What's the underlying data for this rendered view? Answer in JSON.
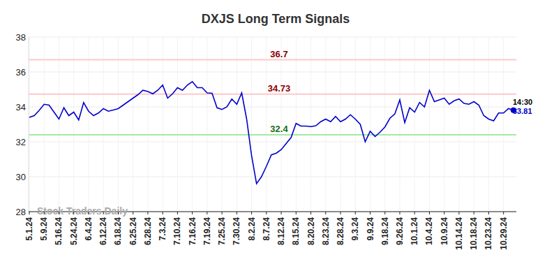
{
  "chart_data": {
    "type": "line",
    "title": "DXJS Long Term Signals",
    "categories": [
      "5.1.24",
      null,
      null,
      "5.9.24",
      null,
      null,
      "5.16.24",
      null,
      null,
      "5.24.24",
      null,
      null,
      "6.4.24",
      null,
      null,
      "6.12.24",
      null,
      null,
      "6.18.24",
      null,
      null,
      "6.25.24",
      null,
      null,
      "6.28.24",
      null,
      null,
      "7.3.24",
      null,
      null,
      "7.10.24",
      null,
      null,
      "7.16.24",
      null,
      null,
      "7.19.24",
      null,
      null,
      "7.25.24",
      null,
      null,
      "7.30.24",
      null,
      null,
      "8.2.24",
      null,
      null,
      "8.7.24",
      null,
      null,
      "8.12.24",
      null,
      null,
      "8.15.24",
      null,
      null,
      "8.20.24",
      null,
      null,
      "8.23.24",
      null,
      null,
      "8.28.24",
      null,
      null,
      "9.3.24",
      null,
      null,
      "9.9.24",
      null,
      null,
      "9.18.24",
      null,
      null,
      "9.26.24",
      null,
      null,
      "10.1.24",
      null,
      null,
      "10.4.24",
      null,
      null,
      "10.9.24",
      null,
      null,
      "10.14.24",
      null,
      null,
      "10.18.24",
      null,
      null,
      "10.23.24",
      null,
      null,
      "10.29.24",
      null,
      null
    ],
    "values": [
      33.4,
      33.5,
      33.8,
      34.15,
      34.1,
      33.7,
      33.3,
      33.95,
      33.5,
      33.7,
      33.25,
      34.25,
      33.75,
      33.5,
      33.65,
      33.9,
      33.75,
      33.82,
      33.9,
      34.1,
      34.3,
      34.5,
      34.7,
      34.95,
      34.88,
      34.75,
      34.95,
      35.25,
      34.5,
      34.75,
      35.1,
      34.95,
      35.25,
      35.45,
      35.1,
      35.1,
      34.8,
      34.78,
      33.95,
      33.85,
      34.0,
      34.45,
      34.15,
      34.8,
      33.3,
      31.2,
      29.6,
      30.0,
      30.6,
      31.25,
      31.35,
      31.55,
      31.9,
      32.25,
      33.05,
      32.9,
      32.9,
      32.87,
      32.92,
      33.15,
      33.3,
      33.15,
      33.45,
      33.15,
      33.3,
      33.55,
      33.3,
      33.0,
      32.0,
      32.6,
      32.3,
      32.55,
      32.85,
      33.35,
      33.6,
      34.4,
      33.1,
      33.95,
      33.7,
      34.25,
      34.0,
      34.95,
      34.3,
      34.4,
      34.5,
      34.15,
      34.35,
      34.45,
      34.2,
      34.15,
      34.3,
      34.1,
      33.5,
      33.3,
      33.2,
      33.65,
      33.65,
      33.9,
      33.81
    ],
    "color": "#0000cc",
    "ylim": [
      28,
      38
    ],
    "yticks": [
      28,
      30,
      32,
      34,
      36,
      38
    ],
    "grid": true,
    "reference_lines": [
      {
        "value": 36.7,
        "color": "#ffc8c8"
      },
      {
        "value": 34.73,
        "color": "#ffc8c8"
      },
      {
        "value": 32.4,
        "color": "#a6e8a6"
      }
    ],
    "annotations": [
      {
        "text": "14:30"
      },
      {
        "text": "Stock Traders Daily"
      }
    ]
  }
}
